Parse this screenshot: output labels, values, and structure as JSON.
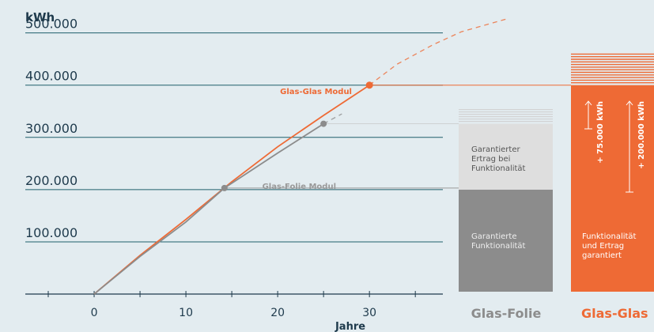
{
  "chart_data": {
    "type": "line",
    "ylabel": "kWh",
    "xlabel": "Jahre",
    "xlim": [
      -7.5,
      38
    ],
    "ylim": [
      -6000,
      510000
    ],
    "x_ticks": [
      {
        "value": 0,
        "label": "0"
      },
      {
        "value": 10,
        "label": "10"
      },
      {
        "value": 20,
        "label": "20"
      },
      {
        "value": 30,
        "label": "30"
      }
    ],
    "y_ticks": [
      {
        "value": 100000,
        "label": "100.000"
      },
      {
        "value": 200000,
        "label": "200.000"
      },
      {
        "value": 300000,
        "label": "300.000"
      },
      {
        "value": 400000,
        "label": "400.000"
      },
      {
        "value": 500000,
        "label": "500.000"
      }
    ],
    "series": [
      {
        "name": "Glas-Glas Modul",
        "color": "#ee6a35",
        "points": [
          [
            0,
            0
          ],
          [
            5,
            74000
          ],
          [
            10,
            143000
          ],
          [
            15,
            215000
          ],
          [
            20,
            282000
          ],
          [
            25,
            342000
          ],
          [
            30,
            400000
          ]
        ],
        "projection": [
          [
            30,
            400000
          ],
          [
            33,
            440000
          ],
          [
            37,
            478000
          ],
          [
            40,
            502000
          ],
          [
            45,
            527000
          ]
        ],
        "marker": [
          30,
          400000
        ]
      },
      {
        "name": "Glas-Folie Modul",
        "color": "#8c8c8c",
        "points": [
          [
            0,
            0
          ],
          [
            5,
            72000
          ],
          [
            10,
            138000
          ],
          [
            14.2,
            203000
          ],
          [
            20,
            270000
          ],
          [
            25,
            326000
          ]
        ],
        "projection": [
          [
            25,
            326000
          ],
          [
            27,
            345000
          ]
        ],
        "marker": [
          25,
          326000
        ],
        "second_marker": [
          14.2,
          203000
        ]
      }
    ],
    "bars": [
      {
        "name": "Glas-Folie",
        "color": "#8c8c8c",
        "segments": [
          {
            "from": 0,
            "to": 200000,
            "label_lines": [
              "Garantierte",
              "Funktionalität"
            ]
          },
          {
            "from": 200000,
            "to": 326000,
            "label_lines": [
              "Garantierter",
              "Ertrag bei",
              "Funktionalität"
            ]
          }
        ]
      },
      {
        "name": "Glas-Glas",
        "color": "#ee6a35",
        "segments": [
          {
            "from": 0,
            "to": 400000,
            "label_lines": [
              "Funktionalität",
              "und Ertrag",
              "garantiert"
            ]
          }
        ],
        "annotations": [
          "+ 75.000 kWh",
          "+ 200.000 kWh"
        ]
      }
    ]
  }
}
